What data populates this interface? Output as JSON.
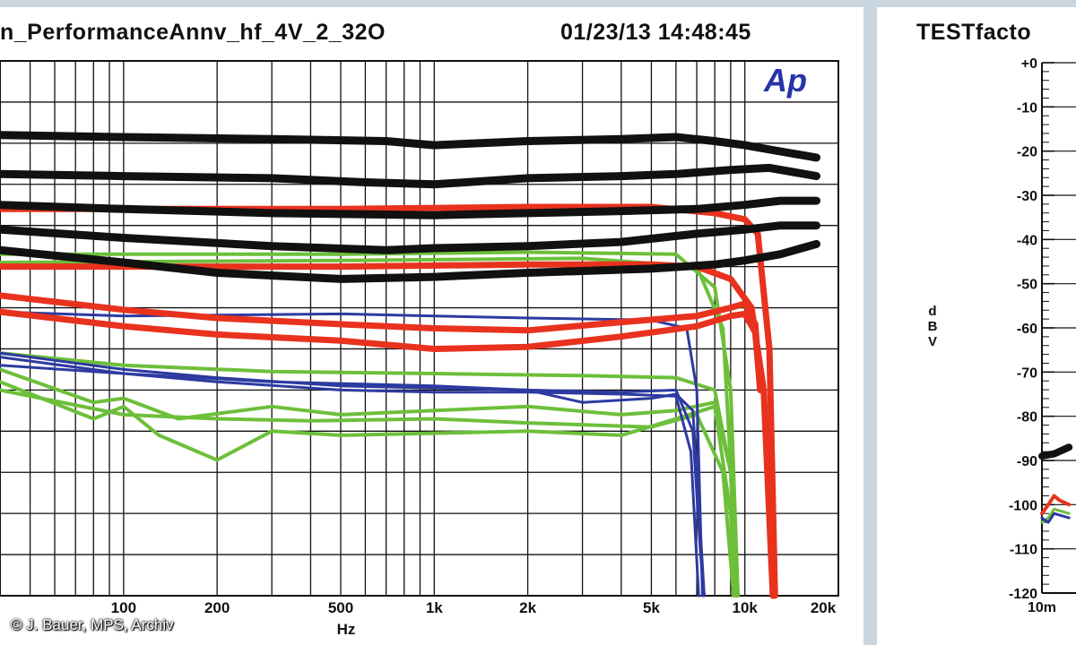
{
  "header": {
    "left_title": "n_PerformanceAnnv_hf_4V_2_32O",
    "left_datetime": "01/23/13 14:48:45",
    "right_title": "TESTfacto"
  },
  "logo_text": "Ap",
  "credit": "© J. Bauer, MPS, Archiv",
  "colors": {
    "black": "#111111",
    "red": "#e8321e",
    "green": "#6dbf3a",
    "blue": "#2d3aa0"
  },
  "chart_data": [
    {
      "type": "line",
      "x_scale": "log",
      "xlabel": "Hz",
      "xlim": [
        40,
        20000
      ],
      "ylim": [
        0,
        13
      ],
      "grid": true,
      "x_ticks": [
        {
          "label": "100",
          "value": 100
        },
        {
          "label": "200",
          "value": 200
        },
        {
          "label": "500",
          "value": 500
        },
        {
          "label": "1k",
          "value": 1000
        },
        {
          "label": "2k",
          "value": 2000
        },
        {
          "label": "5k",
          "value": 5000
        },
        {
          "label": "10k",
          "value": 10000
        },
        {
          "label": "20k",
          "value": 20000
        }
      ],
      "series": [
        {
          "color": "black",
          "width": 9,
          "points": [
            [
              40,
              11.2
            ],
            [
              100,
              11.15
            ],
            [
              300,
              11.1
            ],
            [
              700,
              11.05
            ],
            [
              1000,
              10.95
            ],
            [
              2000,
              11.05
            ],
            [
              4000,
              11.1
            ],
            [
              6000,
              11.15
            ],
            [
              8000,
              11.05
            ],
            [
              10000,
              10.95
            ],
            [
              13000,
              10.8
            ],
            [
              17000,
              10.65
            ]
          ]
        },
        {
          "color": "black",
          "width": 9,
          "points": [
            [
              40,
              10.25
            ],
            [
              100,
              10.2
            ],
            [
              300,
              10.15
            ],
            [
              600,
              10.05
            ],
            [
              1000,
              10.0
            ],
            [
              2000,
              10.15
            ],
            [
              4000,
              10.2
            ],
            [
              6000,
              10.25
            ],
            [
              9000,
              10.35
            ],
            [
              12000,
              10.4
            ],
            [
              17000,
              10.2
            ]
          ]
        },
        {
          "color": "black",
          "width": 9,
          "points": [
            [
              40,
              9.5
            ],
            [
              100,
              9.4
            ],
            [
              300,
              9.3
            ],
            [
              1000,
              9.25
            ],
            [
              2000,
              9.3
            ],
            [
              4000,
              9.35
            ],
            [
              7000,
              9.4
            ],
            [
              10000,
              9.5
            ],
            [
              13000,
              9.6
            ],
            [
              17000,
              9.6
            ]
          ]
        },
        {
          "color": "black",
          "width": 9,
          "points": [
            [
              40,
              8.9
            ],
            [
              100,
              8.7
            ],
            [
              300,
              8.5
            ],
            [
              700,
              8.4
            ],
            [
              1000,
              8.45
            ],
            [
              2000,
              8.5
            ],
            [
              4000,
              8.6
            ],
            [
              7000,
              8.8
            ],
            [
              10000,
              8.9
            ],
            [
              13000,
              9.0
            ],
            [
              17000,
              9.0
            ]
          ]
        },
        {
          "color": "black",
          "width": 9,
          "points": [
            [
              40,
              8.4
            ],
            [
              100,
              8.1
            ],
            [
              200,
              7.85
            ],
            [
              500,
              7.7
            ],
            [
              1000,
              7.75
            ],
            [
              2000,
              7.85
            ],
            [
              5000,
              7.95
            ],
            [
              8000,
              8.05
            ],
            [
              10000,
              8.15
            ],
            [
              13000,
              8.3
            ],
            [
              17000,
              8.55
            ]
          ]
        },
        {
          "color": "red",
          "width": 7,
          "points": [
            [
              40,
              9.4
            ],
            [
              500,
              9.4
            ],
            [
              2000,
              9.45
            ],
            [
              5000,
              9.45
            ],
            [
              8000,
              9.3
            ],
            [
              10000,
              9.15
            ],
            [
              11000,
              8.8
            ],
            [
              12000,
              6.0
            ],
            [
              12500,
              0
            ]
          ]
        },
        {
          "color": "red",
          "width": 7,
          "points": [
            [
              40,
              8.0
            ],
            [
              500,
              8.0
            ],
            [
              2000,
              8.05
            ],
            [
              5000,
              8.05
            ],
            [
              7000,
              8.0
            ],
            [
              9000,
              7.7
            ],
            [
              10500,
              7.0
            ],
            [
              11500,
              5.0
            ],
            [
              12300,
              0
            ]
          ]
        },
        {
          "color": "red",
          "width": 7,
          "points": [
            [
              40,
              7.3
            ],
            [
              100,
              6.95
            ],
            [
              200,
              6.75
            ],
            [
              500,
              6.6
            ],
            [
              1000,
              6.5
            ],
            [
              2000,
              6.45
            ],
            [
              4000,
              6.65
            ],
            [
              7000,
              6.8
            ],
            [
              9000,
              7.0
            ],
            [
              10000,
              7.1
            ],
            [
              10800,
              6.6
            ],
            [
              11200,
              5.0
            ]
          ]
        },
        {
          "color": "red",
          "width": 7,
          "points": [
            [
              40,
              6.9
            ],
            [
              100,
              6.55
            ],
            [
              200,
              6.35
            ],
            [
              500,
              6.2
            ],
            [
              1000,
              6.0
            ],
            [
              2000,
              6.05
            ],
            [
              4000,
              6.3
            ],
            [
              7000,
              6.55
            ],
            [
              9000,
              6.8
            ],
            [
              10000,
              6.85
            ],
            [
              10800,
              6.4
            ],
            [
              11200,
              5.0
            ]
          ]
        },
        {
          "color": "green",
          "width": 4,
          "points": [
            [
              40,
              8.3
            ],
            [
              500,
              8.3
            ],
            [
              2000,
              8.35
            ],
            [
              6000,
              8.3
            ],
            [
              8000,
              7.5
            ],
            [
              9000,
              5.0
            ],
            [
              9500,
              0
            ]
          ]
        },
        {
          "color": "green",
          "width": 4,
          "points": [
            [
              40,
              8.1
            ],
            [
              500,
              8.15
            ],
            [
              3000,
              8.2
            ],
            [
              7000,
              8.0
            ],
            [
              8500,
              6.5
            ],
            [
              9500,
              0
            ]
          ]
        },
        {
          "color": "green",
          "width": 4,
          "points": [
            [
              40,
              5.9
            ],
            [
              100,
              5.6
            ],
            [
              300,
              5.45
            ],
            [
              1000,
              5.4
            ],
            [
              3000,
              5.35
            ],
            [
              6000,
              5.3
            ],
            [
              8000,
              5.0
            ],
            [
              9000,
              3.0
            ],
            [
              9400,
              0
            ]
          ]
        },
        {
          "color": "green",
          "width": 4,
          "points": [
            [
              40,
              5.2
            ],
            [
              80,
              4.3
            ],
            [
              100,
              4.6
            ],
            [
              130,
              3.9
            ],
            [
              200,
              3.3
            ],
            [
              300,
              4.0
            ],
            [
              500,
              3.9
            ],
            [
              1000,
              3.95
            ],
            [
              2000,
              4.0
            ],
            [
              4000,
              3.9
            ],
            [
              6000,
              4.3
            ],
            [
              8000,
              4.6
            ],
            [
              9000,
              2.0
            ],
            [
              9300,
              0
            ]
          ]
        },
        {
          "color": "green",
          "width": 4,
          "points": [
            [
              40,
              5.5
            ],
            [
              80,
              4.7
            ],
            [
              100,
              4.8
            ],
            [
              150,
              4.3
            ],
            [
              300,
              4.6
            ],
            [
              500,
              4.4
            ],
            [
              1000,
              4.5
            ],
            [
              2000,
              4.6
            ],
            [
              4000,
              4.4
            ],
            [
              6000,
              4.5
            ],
            [
              8000,
              4.7
            ],
            [
              9000,
              3.0
            ],
            [
              9400,
              0
            ]
          ]
        },
        {
          "color": "green",
          "width": 4,
          "points": [
            [
              40,
              5.0
            ],
            [
              100,
              4.4
            ],
            [
              200,
              4.3
            ],
            [
              400,
              4.25
            ],
            [
              1000,
              4.3
            ],
            [
              2000,
              4.2
            ],
            [
              5000,
              4.1
            ],
            [
              7000,
              4.4
            ],
            [
              8500,
              3.0
            ],
            [
              9200,
              0
            ]
          ]
        },
        {
          "color": "blue",
          "width": 3,
          "points": [
            [
              40,
              5.9
            ],
            [
              100,
              5.5
            ],
            [
              200,
              5.3
            ],
            [
              500,
              5.1
            ],
            [
              1000,
              5.05
            ],
            [
              2000,
              5.0
            ],
            [
              4000,
              4.95
            ],
            [
              6000,
              5.0
            ],
            [
              6800,
              4.0
            ],
            [
              7200,
              1.0
            ],
            [
              7400,
              0
            ]
          ]
        },
        {
          "color": "blue",
          "width": 3,
          "points": [
            [
              40,
              5.6
            ],
            [
              100,
              5.4
            ],
            [
              200,
              5.2
            ],
            [
              500,
              5.0
            ],
            [
              1000,
              4.95
            ],
            [
              2000,
              4.95
            ],
            [
              4000,
              4.9
            ],
            [
              6000,
              4.85
            ],
            [
              6700,
              3.5
            ],
            [
              7100,
              0
            ]
          ]
        },
        {
          "color": "blue",
          "width": 3,
          "points": [
            [
              40,
              6.9
            ],
            [
              100,
              6.8
            ],
            [
              500,
              6.85
            ],
            [
              1000,
              6.8
            ],
            [
              2000,
              6.75
            ],
            [
              5000,
              6.7
            ],
            [
              6500,
              6.5
            ],
            [
              7000,
              5.0
            ],
            [
              7300,
              0
            ]
          ]
        },
        {
          "color": "blue",
          "width": 3,
          "points": [
            [
              40,
              5.8
            ],
            [
              100,
              5.4
            ],
            [
              300,
              5.2
            ],
            [
              1000,
              5.1
            ],
            [
              2000,
              5.0
            ],
            [
              3000,
              4.7
            ],
            [
              5000,
              4.8
            ],
            [
              6000,
              4.9
            ],
            [
              6800,
              4.5
            ],
            [
              7200,
              1.5
            ],
            [
              7400,
              0
            ]
          ]
        }
      ]
    },
    {
      "type": "line",
      "x_scale": "log",
      "ylabel": "dBV",
      "ylim": [
        -120,
        0
      ],
      "x_ticks": [
        {
          "label": "10m",
          "value": 0.01
        }
      ],
      "y_ticks": [
        "+0",
        "-10",
        "-20",
        "-30",
        "-40",
        "-50",
        "-60",
        "-70",
        "-80",
        "-90",
        "-100",
        "-110",
        "-120"
      ],
      "series": [
        {
          "color": "black",
          "width": 8,
          "points": [
            [
              0.01,
              -89
            ],
            [
              0.012,
              -88.5
            ],
            [
              0.015,
              -87
            ]
          ]
        },
        {
          "color": "red",
          "width": 4,
          "points": [
            [
              0.01,
              -102
            ],
            [
              0.011,
              -100
            ],
            [
              0.012,
              -98
            ],
            [
              0.013,
              -99
            ],
            [
              0.015,
              -100
            ]
          ]
        },
        {
          "color": "green",
          "width": 3,
          "points": [
            [
              0.01,
              -104
            ],
            [
              0.011,
              -103
            ],
            [
              0.012,
              -101
            ],
            [
              0.015,
              -102
            ]
          ]
        },
        {
          "color": "blue",
          "width": 3,
          "points": [
            [
              0.01,
              -103
            ],
            [
              0.011,
              -104
            ],
            [
              0.012,
              -102
            ],
            [
              0.015,
              -103
            ]
          ]
        }
      ]
    }
  ]
}
